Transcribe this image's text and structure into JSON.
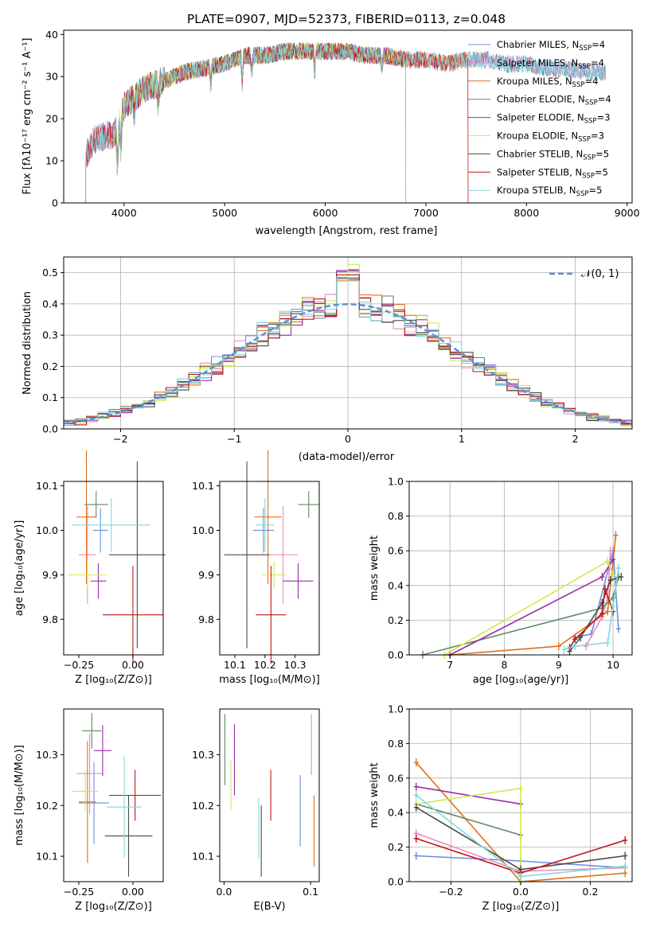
{
  "colors": [
    "#6c8fdd",
    "#e88ec0",
    "#e0701a",
    "#5f8a62",
    "#9b2ca8",
    "#cfea52",
    "#4a4a4a",
    "#c01616",
    "#7fd9d9"
  ],
  "spectrum": {
    "title": "PLATE=0907, MJD=52373, FIBERID=0113, z=0.048",
    "xlabel": "wavelength [Angstrom, rest frame]",
    "ylabel": "Flux [fλ10⁻¹⁷ erg cm⁻² s⁻¹ A⁻¹]",
    "xticks": [
      "4000",
      "5000",
      "6000",
      "7000",
      "8000",
      "9000"
    ],
    "yticks": [
      "0",
      "10",
      "20",
      "30",
      "40"
    ],
    "legend": [
      {
        "name": "Chabrier MILES, N_SSP=4",
        "base": "Chabrier MILES, N",
        "sub": "SSP",
        "suffix": "=4"
      },
      {
        "name": "Salpeter MILES, N_SSP=4",
        "base": "Salpeter MILES, N",
        "sub": "SSP",
        "suffix": "=4"
      },
      {
        "name": "Kroupa MILES, N_SSP=4",
        "base": "Kroupa MILES, N",
        "sub": "SSP",
        "suffix": "=4"
      },
      {
        "name": "Chabrier ELODIE, N_SSP=4",
        "base": "Chabrier ELODIE, N",
        "sub": "SSP",
        "suffix": "=4"
      },
      {
        "name": "Salpeter ELODIE, N_SSP=3",
        "base": "Salpeter ELODIE, N",
        "sub": "SSP",
        "suffix": "=3"
      },
      {
        "name": "Kroupa ELODIE, N_SSP=3",
        "base": "Kroupa ELODIE, N",
        "sub": "SSP",
        "suffix": "=3"
      },
      {
        "name": "Chabrier STELIB, N_SSP=5",
        "base": "Chabrier STELIB, N",
        "sub": "SSP",
        "suffix": "=5"
      },
      {
        "name": "Salpeter STELIB, N_SSP=5",
        "base": "Salpeter STELIB, N",
        "sub": "SSP",
        "suffix": "=5"
      },
      {
        "name": "Kroupa STELIB, N_SSP=5",
        "base": "Kroupa STELIB, N",
        "sub": "SSP",
        "suffix": "=5"
      }
    ]
  },
  "residuals": {
    "xlabel": "(data-model)/error",
    "ylabel": "Normed distribution",
    "xticks": [
      "−2",
      "−1",
      "0",
      "1",
      "2"
    ],
    "yticks": [
      "0.0",
      "0.1",
      "0.2",
      "0.3",
      "0.4",
      "0.5"
    ],
    "legend": "𝒩(0, 1)"
  },
  "panels": {
    "age_label": "age  [log₁₀(age/yr)]",
    "z_label": "Z [log₁₀(Z/Z⊙)]",
    "mass_label": "mass [log₁₀(M/M⊙)]",
    "mw_label": "mass weight",
    "ebv_label": "E(B-V)",
    "z_ticks": [
      "−0.25",
      "0.00"
    ],
    "age_ticks": [
      "9.8",
      "9.9",
      "10.0",
      "10.1"
    ],
    "mass_ticks_x": [
      "10.1",
      "10.2",
      "10.3"
    ],
    "mass_ticks_y": [
      "10.1",
      "10.2",
      "10.3"
    ],
    "ebv_ticks": [
      "0.0",
      "0.1"
    ],
    "mw_ticks": [
      "0.0",
      "0.2",
      "0.4",
      "0.6",
      "0.8",
      "1.0"
    ],
    "age_x_ticks": [
      "7",
      "8",
      "9",
      "10"
    ],
    "z_x_ticks2": [
      "−0.2",
      "0.0",
      "0.2"
    ]
  },
  "chart_data": [
    {
      "type": "line",
      "title": "PLATE=0907, MJD=52373, FIBERID=0113, z=0.048",
      "xlabel": "wavelength [Angstrom, rest frame]",
      "ylabel": "Flux [fλ10⁻¹⁷ erg cm⁻² s⁻¹ A⁻¹]",
      "xlim": [
        3400,
        9050
      ],
      "ylim": [
        0,
        41
      ],
      "continuum": {
        "x": [
          3620,
          3700,
          3800,
          3900,
          3950,
          4000,
          4100,
          4200,
          4300,
          4400,
          4500,
          4600,
          4800,
          5000,
          5200,
          5400,
          5600,
          5800,
          6000,
          6200,
          6400,
          6600,
          6800,
          7000,
          7200,
          7400,
          7600,
          7800,
          8000,
          8200,
          8400,
          8600,
          8800
        ],
        "y": [
          11,
          15,
          16,
          16,
          19,
          23,
          25,
          27,
          28,
          29,
          30,
          31,
          32,
          33,
          35,
          35,
          36,
          36,
          36,
          36,
          35,
          35,
          34,
          34,
          33,
          34,
          34,
          33,
          33,
          32,
          32,
          31,
          31
        ]
      },
      "series": [
        "Chabrier MILES",
        "Salpeter MILES",
        "Kroupa MILES",
        "Chabrier ELODIE",
        "Salpeter ELODIE",
        "Kroupa ELODIE",
        "Chabrier STELIB",
        "Salpeter STELIB",
        "Kroupa STELIB"
      ],
      "ranges": [
        [
          3620,
          8790
        ],
        [
          3620,
          8790
        ],
        [
          3900,
          7420
        ],
        [
          3900,
          6800
        ],
        [
          3900,
          6800
        ],
        [
          3900,
          6800
        ],
        [
          3620,
          8790
        ],
        [
          3620,
          7420
        ],
        [
          3620,
          8790
        ]
      ]
    },
    {
      "type": "line",
      "xlabel": "(data-model)/error",
      "ylabel": "Normed distribution",
      "xlim": [
        -2.5,
        2.5
      ],
      "ylim": [
        0,
        0.55
      ],
      "normal_legend": "𝒩(0, 1)",
      "bin_width": 0.1
    },
    {
      "type": "scatter",
      "xlabel": "Z [log₁₀(Z/Z⊙)]",
      "ylabel": "age  [log₁₀(age/yr)]",
      "xlim": [
        -0.32,
        0.14
      ],
      "ylim": [
        9.72,
        10.11
      ],
      "points": [
        {
          "x": -0.15,
          "y": 10.0,
          "ex": 0.035,
          "ey": 0.05
        },
        {
          "x": -0.21,
          "y": 9.945,
          "ex": 0.04,
          "ey": 0.11
        },
        {
          "x": -0.215,
          "y": 10.03,
          "ex": 0.045,
          "ey": 0.15
        },
        {
          "x": -0.17,
          "y": 10.058,
          "ex": 0.055,
          "ey": 0.03
        },
        {
          "x": -0.16,
          "y": 9.886,
          "ex": 0.036,
          "ey": 0.04
        },
        {
          "x": -0.21,
          "y": 9.9,
          "ex": 0.09,
          "ey": 0.03
        },
        {
          "x": 0.02,
          "y": 9.945,
          "ex": 0.13,
          "ey": 0.21
        },
        {
          "x": 0.0,
          "y": 9.81,
          "ex": 0.14,
          "ey": 0.11
        },
        {
          "x": -0.1,
          "y": 10.012,
          "ex": 0.18,
          "ey": 0.06
        }
      ]
    },
    {
      "type": "scatter",
      "xlabel": "mass [log₁₀(M/M⊙)]",
      "xlim": [
        10.05,
        10.38
      ],
      "ylim": [
        9.72,
        10.11
      ],
      "points": [
        {
          "x": 10.195,
          "y": 10.0,
          "ex": 0.035,
          "ey": 0.05
        },
        {
          "x": 10.26,
          "y": 9.945,
          "ex": 0.05,
          "ey": 0.11
        },
        {
          "x": 10.21,
          "y": 10.03,
          "ex": 0.045,
          "ey": 0.15
        },
        {
          "x": 10.345,
          "y": 10.058,
          "ex": 0.035,
          "ey": 0.03
        },
        {
          "x": 10.31,
          "y": 9.886,
          "ex": 0.05,
          "ey": 0.04
        },
        {
          "x": 10.23,
          "y": 9.9,
          "ex": 0.04,
          "ey": 0.03
        },
        {
          "x": 10.14,
          "y": 9.945,
          "ex": 0.075,
          "ey": 0.21
        },
        {
          "x": 10.22,
          "y": 9.81,
          "ex": 0.05,
          "ey": 0.11
        },
        {
          "x": 10.2,
          "y": 10.012,
          "ex": 0.03,
          "ey": 0.06
        }
      ]
    },
    {
      "type": "line",
      "xlabel": "age  [log₁₀(age/yr)]",
      "ylabel": "mass weight",
      "xlim": [
        6.25,
        10.35
      ],
      "ylim": [
        0,
        1.0
      ],
      "series": [
        {
          "x": [
            9.3,
            9.6,
            10.0,
            10.1
          ],
          "y": [
            0.1,
            0.12,
            0.6,
            0.15
          ]
        },
        {
          "x": [
            9.5,
            9.8,
            9.9,
            9.95
          ],
          "y": [
            0.05,
            0.22,
            0.33,
            0.6
          ]
        },
        {
          "x": [
            7.0,
            9.0,
            9.9,
            10.05
          ],
          "y": [
            0.0,
            0.05,
            0.25,
            0.69
          ]
        },
        {
          "x": [
            6.5,
            9.8,
            10.0,
            10.1
          ],
          "y": [
            0.0,
            0.27,
            0.33,
            0.45
          ]
        },
        {
          "x": [
            7.0,
            9.8,
            10.0
          ],
          "y": [
            0.0,
            0.45,
            0.55
          ]
        },
        {
          "x": [
            6.9,
            9.9,
            10.0
          ],
          "y": [
            0.0,
            0.54,
            0.46
          ]
        },
        {
          "x": [
            9.2,
            9.4,
            9.8,
            9.95,
            10.15
          ],
          "y": [
            0.02,
            0.1,
            0.3,
            0.43,
            0.45
          ]
        },
        {
          "x": [
            9.2,
            9.3,
            9.8,
            9.85,
            10.0
          ],
          "y": [
            0.04,
            0.09,
            0.24,
            0.38,
            0.25
          ]
        },
        {
          "x": [
            9.1,
            9.3,
            9.9,
            10.0,
            10.1
          ],
          "y": [
            0.03,
            0.05,
            0.07,
            0.28,
            0.5
          ]
        }
      ]
    },
    {
      "type": "scatter",
      "xlabel": "Z [log₁₀(Z/Z⊙)]",
      "ylabel": "mass [log₁₀(M/M⊙)]",
      "xlim": [
        -0.32,
        0.14
      ],
      "ylim": [
        10.05,
        10.39
      ],
      "points": [
        {
          "x": -0.18,
          "y": 10.205,
          "ex": 0.07,
          "ey": 0.08
        },
        {
          "x": -0.2,
          "y": 10.263,
          "ex": 0.06,
          "ey": 0.08
        },
        {
          "x": -0.21,
          "y": 10.207,
          "ex": 0.04,
          "ey": 0.12
        },
        {
          "x": -0.19,
          "y": 10.347,
          "ex": 0.045,
          "ey": 0.035
        },
        {
          "x": -0.14,
          "y": 10.308,
          "ex": 0.04,
          "ey": 0.05
        },
        {
          "x": -0.22,
          "y": 10.228,
          "ex": 0.06,
          "ey": 0.04
        },
        {
          "x": -0.02,
          "y": 10.14,
          "ex": 0.11,
          "ey": 0.08
        },
        {
          "x": 0.01,
          "y": 10.22,
          "ex": 0.12,
          "ey": 0.05
        },
        {
          "x": -0.04,
          "y": 10.197,
          "ex": 0.08,
          "ey": 0.1
        }
      ]
    },
    {
      "type": "scatter",
      "xlabel": "E(B-V)",
      "xlim": [
        -0.005,
        0.11
      ],
      "ylim": [
        10.05,
        10.39
      ],
      "points": [
        {
          "x": 0.088,
          "y": 10.19,
          "ey": 0.07
        },
        {
          "x": 0.101,
          "y": 10.32,
          "ey": 0.06
        },
        {
          "x": 0.104,
          "y": 10.15,
          "ey": 0.07
        },
        {
          "x": 0.001,
          "y": 10.31,
          "ey": 0.07
        },
        {
          "x": 0.012,
          "y": 10.29,
          "ey": 0.07
        },
        {
          "x": 0.008,
          "y": 10.24,
          "ey": 0.05
        },
        {
          "x": 0.043,
          "y": 10.13,
          "ey": 0.07
        },
        {
          "x": 0.054,
          "y": 10.22,
          "ey": 0.05
        },
        {
          "x": 0.04,
          "y": 10.155,
          "ey": 0.06
        }
      ]
    },
    {
      "type": "line",
      "xlabel": "Z [log₁₀(Z/Z⊙)]",
      "ylabel": "mass weight",
      "xlim": [
        -0.32,
        0.32
      ],
      "ylim": [
        0,
        1.0
      ],
      "series": [
        {
          "x": [
            -0.3,
            0.0,
            0.3
          ],
          "y": [
            0.15,
            0.12,
            0.08
          ]
        },
        {
          "x": [
            -0.3,
            0.0,
            0.3
          ],
          "y": [
            0.28,
            0.06,
            0.08
          ]
        },
        {
          "x": [
            -0.3,
            0.0,
            0.3
          ],
          "y": [
            0.69,
            0.0,
            0.05
          ]
        },
        {
          "x": [
            -0.3,
            0.0
          ],
          "y": [
            0.45,
            0.27
          ]
        },
        {
          "x": [
            -0.3,
            0.0
          ],
          "y": [
            0.55,
            0.45
          ]
        },
        {
          "x": [
            -0.3,
            0.0,
            0.0
          ],
          "y": [
            0.45,
            0.54,
            0.0
          ]
        },
        {
          "x": [
            -0.3,
            0.0,
            0.3
          ],
          "y": [
            0.43,
            0.07,
            0.15
          ]
        },
        {
          "x": [
            -0.3,
            0.0,
            0.3
          ],
          "y": [
            0.25,
            0.05,
            0.24
          ]
        },
        {
          "x": [
            -0.3,
            0.0,
            0.3
          ],
          "y": [
            0.5,
            0.03,
            0.09
          ]
        }
      ]
    }
  ]
}
